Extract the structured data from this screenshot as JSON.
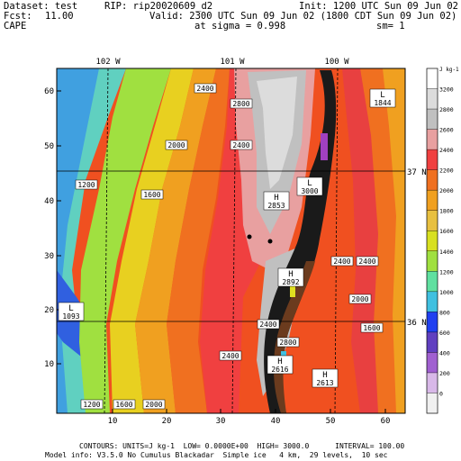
{
  "header": {
    "dataset": "Dataset: test",
    "rip": "RIP: rip20020609_d2",
    "init": "Init: 1200 UTC Sun 09 Jun 02",
    "fcst_label": "Fcst:",
    "fcst_value": "11.00",
    "valid": "Valid: 2300 UTC Sun 09 Jun 02 (1800 CDT Sun 09 Jun 02)",
    "field": "CAPE",
    "sigma": "at sigma = 0.998",
    "sm": "sm= 1"
  },
  "map": {
    "top_labels": [
      "102 W",
      "101 W",
      "100 W"
    ],
    "right_labels": [
      "37 N",
      "36 N"
    ],
    "x_ticks": [
      "10",
      "20",
      "30",
      "40",
      "50",
      "60"
    ],
    "y_ticks": [
      "10",
      "20",
      "30",
      "40",
      "50",
      "60"
    ],
    "contour_labels": [
      "2400",
      "2800",
      "2000",
      "2400",
      "1600",
      "1200",
      "1200",
      "1600",
      "2000",
      "2400",
      "2400",
      "2000",
      "1600",
      "2400",
      "2800",
      "2400"
    ],
    "extrema": [
      {
        "type": "L",
        "value": "1844"
      },
      {
        "type": "L",
        "value": "3000"
      },
      {
        "type": "H",
        "value": "2853"
      },
      {
        "type": "H",
        "value": "2892"
      },
      {
        "type": "H",
        "value": "2616"
      },
      {
        "type": "H",
        "value": "2613"
      },
      {
        "type": "L",
        "value": "1093"
      }
    ]
  },
  "colorbar": {
    "unit": "J kg-1",
    "labels": [
      "3200",
      "2800",
      "2600",
      "2400",
      "2200",
      "2000",
      "1800",
      "1600",
      "1400",
      "1200",
      "1000",
      "800",
      "600",
      "400",
      "200",
      "0"
    ],
    "colors": [
      "#ffffff",
      "#dcdcdc",
      "#c0c0c0",
      "#e8a0a0",
      "#f04040",
      "#f07020",
      "#f0a020",
      "#e8c040",
      "#d8e020",
      "#a0e040",
      "#60e0a0",
      "#40c0e0",
      "#2040f0",
      "#6040c0",
      "#a060d0",
      "#d8b8e8",
      "#f0f0f0"
    ]
  },
  "footer": {
    "line1": "CONTOURS: UNITS=J kg-1  LOW= 0.0000E+00  HIGH= 3000.0      INTERVAL= 100.00",
    "line2": "Model info: V3.5.0 No Cumulus Blackadar  Simple ice   4 km,  29 levels,  10 sec"
  }
}
